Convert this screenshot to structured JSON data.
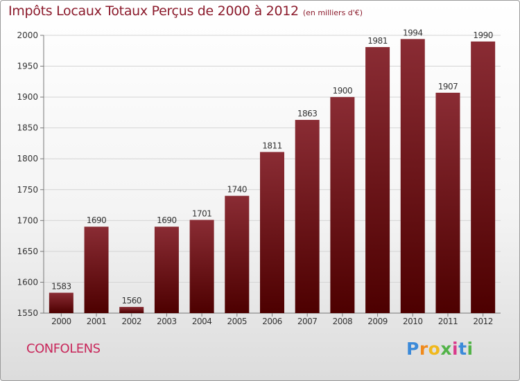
{
  "header": {
    "title": "Impôts Locaux Totaux Perçus de 2000 à 2012",
    "unit": "(en milliers d'€)"
  },
  "footer": {
    "city": "CONFOLENS",
    "brand": "Proxiti"
  },
  "colors": {
    "bar_top": "#8a2c34",
    "bar_bottom": "#4d0000",
    "title": "#8b1a2b",
    "city": "#c8265a"
  },
  "chart_data": {
    "type": "bar",
    "categories": [
      "2000",
      "2001",
      "2002",
      "2003",
      "2004",
      "2005",
      "2006",
      "2007",
      "2008",
      "2009",
      "2010",
      "2011",
      "2012"
    ],
    "values": [
      1583,
      1690,
      1560,
      1690,
      1701,
      1740,
      1811,
      1863,
      1900,
      1981,
      1994,
      1907,
      1990
    ],
    "ylim": [
      1550,
      2000
    ],
    "yticks": [
      1550,
      1600,
      1650,
      1700,
      1750,
      1800,
      1850,
      1900,
      1950,
      2000
    ],
    "grid": true,
    "data_labels": true
  }
}
